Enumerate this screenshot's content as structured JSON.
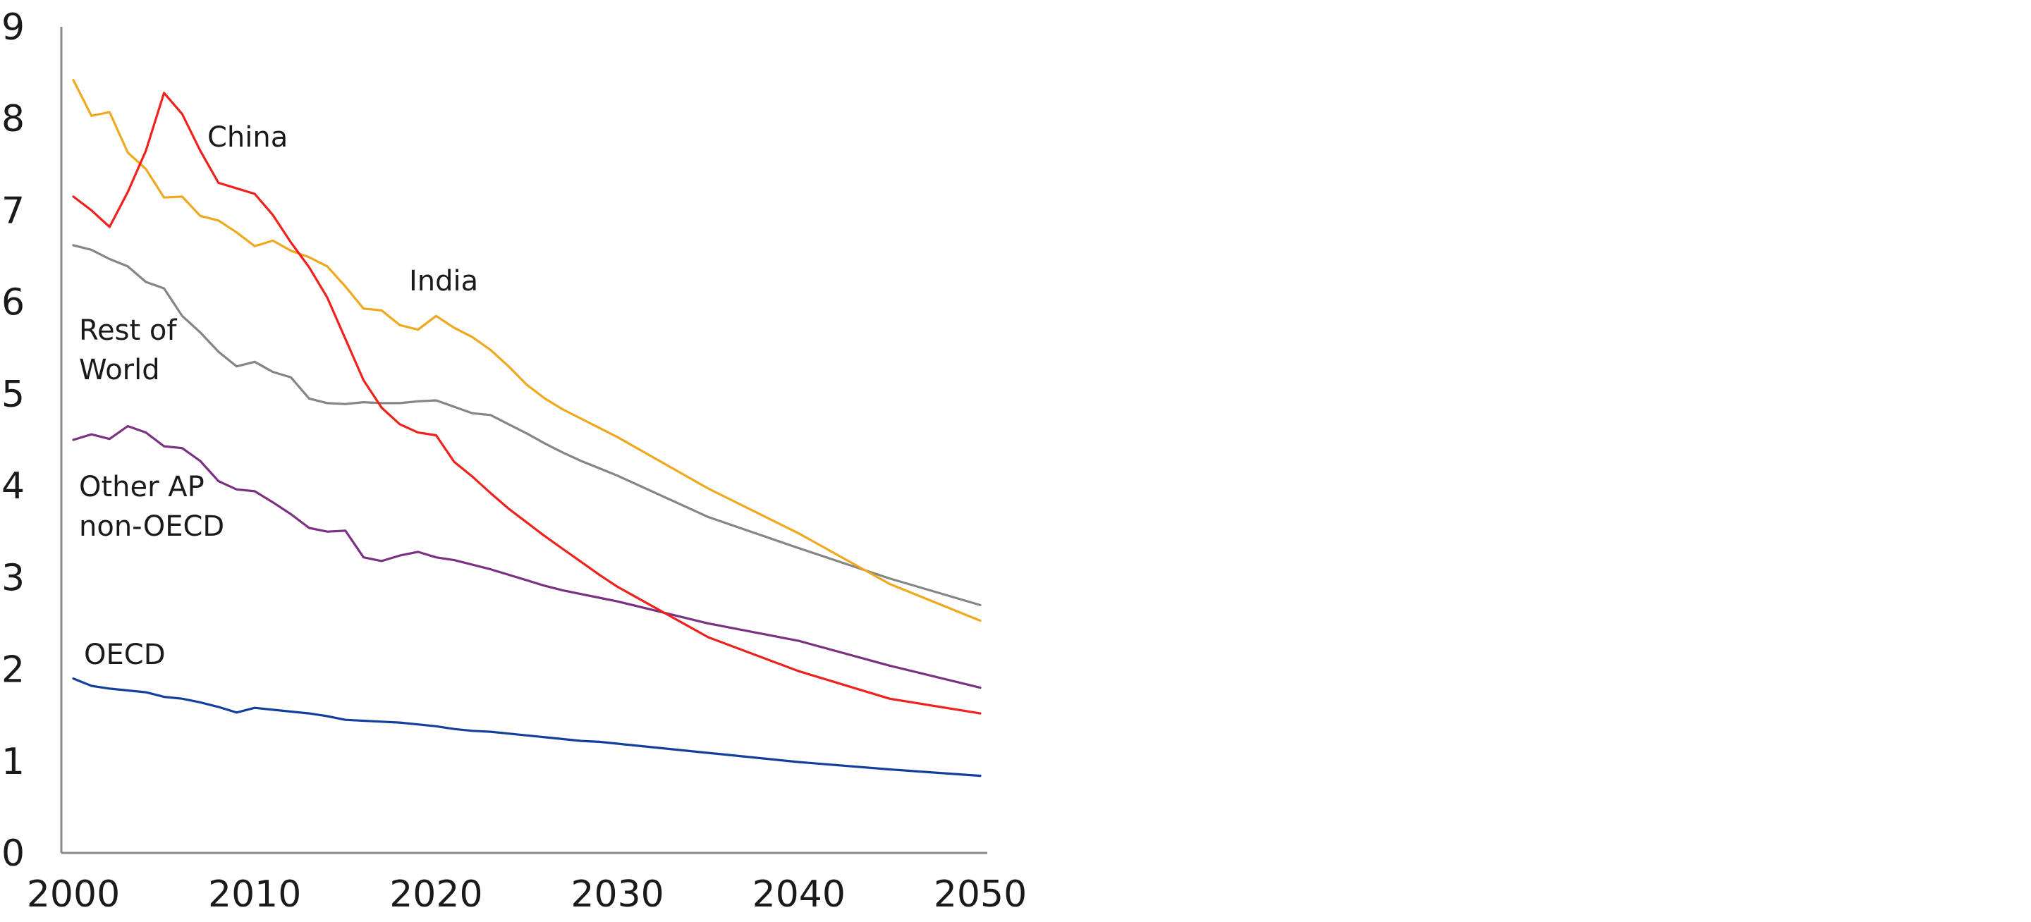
{
  "chart_data": {
    "type": "line",
    "title": "",
    "xlabel": "",
    "ylabel": "",
    "xlim": [
      2000,
      2050
    ],
    "ylim": [
      0,
      9
    ],
    "x_ticks": [
      2000,
      2010,
      2020,
      2030,
      2040,
      2050
    ],
    "y_ticks": [
      0,
      1,
      2,
      3,
      4,
      5,
      6,
      7,
      8,
      9
    ],
    "grid": false,
    "legend": "none (series labeled directly on the plot)",
    "series": [
      {
        "name": "China",
        "label_lines": [
          "China"
        ],
        "color": "#f0211c",
        "x": [
          2000,
          2001,
          2002,
          2003,
          2004,
          2005,
          2006,
          2007,
          2008,
          2009,
          2010,
          2011,
          2012,
          2013,
          2014,
          2015,
          2016,
          2017,
          2018,
          2019,
          2020,
          2021,
          2022,
          2023,
          2024,
          2025,
          2026,
          2027,
          2028,
          2029,
          2030,
          2035,
          2040,
          2045,
          2050
        ],
        "values": [
          7.15,
          7.0,
          6.82,
          7.2,
          7.65,
          8.28,
          8.05,
          7.65,
          7.3,
          7.24,
          7.18,
          6.95,
          6.65,
          6.38,
          6.05,
          5.6,
          5.15,
          4.85,
          4.67,
          4.58,
          4.55,
          4.26,
          4.1,
          3.92,
          3.75,
          3.6,
          3.45,
          3.31,
          3.17,
          3.03,
          2.9,
          2.35,
          1.98,
          1.68,
          1.52
        ]
      },
      {
        "name": "India",
        "label_lines": [
          "India"
        ],
        "color": "#f0a81e",
        "x": [
          2000,
          2001,
          2002,
          2003,
          2004,
          2005,
          2006,
          2007,
          2008,
          2009,
          2010,
          2011,
          2012,
          2013,
          2014,
          2015,
          2016,
          2017,
          2018,
          2019,
          2020,
          2021,
          2022,
          2023,
          2024,
          2025,
          2026,
          2027,
          2028,
          2029,
          2030,
          2035,
          2040,
          2045,
          2050
        ],
        "values": [
          8.42,
          8.03,
          8.07,
          7.63,
          7.45,
          7.14,
          7.15,
          6.94,
          6.89,
          6.76,
          6.61,
          6.67,
          6.56,
          6.49,
          6.39,
          6.17,
          5.93,
          5.91,
          5.75,
          5.7,
          5.85,
          5.72,
          5.62,
          5.48,
          5.3,
          5.1,
          4.95,
          4.83,
          4.73,
          4.63,
          4.53,
          3.97,
          3.48,
          2.93,
          2.53
        ]
      },
      {
        "name": "Rest of World",
        "label_lines": [
          "Rest of",
          "World"
        ],
        "color": "#858585",
        "x": [
          2000,
          2001,
          2002,
          2003,
          2004,
          2005,
          2006,
          2007,
          2008,
          2009,
          2010,
          2011,
          2012,
          2013,
          2014,
          2015,
          2016,
          2017,
          2018,
          2019,
          2020,
          2021,
          2022,
          2023,
          2024,
          2025,
          2026,
          2027,
          2028,
          2029,
          2030,
          2035,
          2040,
          2045,
          2050
        ],
        "values": [
          6.62,
          6.57,
          6.47,
          6.39,
          6.22,
          6.15,
          5.85,
          5.67,
          5.46,
          5.3,
          5.35,
          5.24,
          5.18,
          4.95,
          4.9,
          4.89,
          4.91,
          4.9,
          4.9,
          4.92,
          4.93,
          4.86,
          4.79,
          4.77,
          4.67,
          4.57,
          4.46,
          4.36,
          4.27,
          4.19,
          4.11,
          3.66,
          3.32,
          2.99,
          2.7
        ]
      },
      {
        "name": "Other AP non-OECD",
        "label_lines": [
          "Other AP",
          "non-OECD"
        ],
        "color": "#7b3182",
        "x": [
          2000,
          2001,
          2002,
          2003,
          2004,
          2005,
          2006,
          2007,
          2008,
          2009,
          2010,
          2011,
          2012,
          2013,
          2014,
          2015,
          2016,
          2017,
          2018,
          2019,
          2020,
          2021,
          2022,
          2023,
          2024,
          2025,
          2026,
          2027,
          2028,
          2029,
          2030,
          2035,
          2040,
          2045,
          2050
        ],
        "values": [
          4.5,
          4.56,
          4.51,
          4.65,
          4.58,
          4.43,
          4.41,
          4.27,
          4.05,
          3.96,
          3.94,
          3.82,
          3.69,
          3.54,
          3.5,
          3.51,
          3.22,
          3.18,
          3.24,
          3.28,
          3.22,
          3.19,
          3.14,
          3.09,
          3.03,
          2.97,
          2.91,
          2.86,
          2.82,
          2.78,
          2.74,
          2.5,
          2.31,
          2.04,
          1.8
        ]
      },
      {
        "name": "OECD",
        "label_lines": [
          "OECD"
        ],
        "color": "#133f9c",
        "x": [
          2000,
          2001,
          2002,
          2003,
          2004,
          2005,
          2006,
          2007,
          2008,
          2009,
          2010,
          2011,
          2012,
          2013,
          2014,
          2015,
          2016,
          2017,
          2018,
          2019,
          2020,
          2021,
          2022,
          2023,
          2024,
          2025,
          2026,
          2027,
          2028,
          2029,
          2030,
          2035,
          2040,
          2045,
          2050
        ],
        "values": [
          1.9,
          1.82,
          1.79,
          1.77,
          1.75,
          1.7,
          1.68,
          1.64,
          1.59,
          1.53,
          1.58,
          1.56,
          1.54,
          1.52,
          1.49,
          1.45,
          1.44,
          1.43,
          1.42,
          1.4,
          1.38,
          1.35,
          1.33,
          1.32,
          1.3,
          1.28,
          1.26,
          1.24,
          1.22,
          1.21,
          1.19,
          1.09,
          0.99,
          0.91,
          0.84
        ]
      }
    ]
  }
}
